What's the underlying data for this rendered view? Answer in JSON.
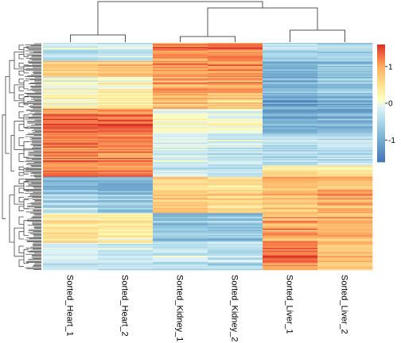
{
  "chart_data": {
    "type": "heatmap",
    "title": "",
    "columns": [
      "Sorted_Heart_1",
      "Sorted_Heart_2",
      "Sorted_Kidney_1",
      "Sorted_Kidney_2",
      "Sorted_Liver_1",
      "Sorted_Liver_2"
    ],
    "column_dendrogram": "((Sorted_Heart_1,Sorted_Heart_2),((Sorted_Kidney_1,Sorted_Kidney_2),(Sorted_Liver_1,Sorted_Liver_2)))",
    "row_dendrogram": "on left, many genes, not labeled",
    "colorbar": {
      "ticks": [
        1,
        0,
        -1
      ],
      "ticklabels": [
        "1",
        "0",
        "-1"
      ],
      "range": [
        -1.6,
        1.6
      ],
      "colors": {
        "low": "#4575b4",
        "mid": "#ffffbf",
        "high": "#d73027"
      },
      "position": "right"
    },
    "row_blocks": [
      {
        "approx_fraction": 0.08,
        "values": [
          -0.3,
          -0.2,
          1.2,
          1.2,
          -0.4,
          -0.5
        ]
      },
      {
        "approx_fraction": 0.07,
        "values": [
          0.6,
          0.7,
          1.1,
          1.1,
          -1.0,
          -0.8
        ]
      },
      {
        "approx_fraction": 0.07,
        "values": [
          0.0,
          0.2,
          1.0,
          1.0,
          -0.9,
          -0.7
        ]
      },
      {
        "approx_fraction": 0.07,
        "values": [
          0.2,
          0.3,
          0.8,
          0.7,
          -1.1,
          -1.0
        ]
      },
      {
        "approx_fraction": 0.11,
        "values": [
          1.3,
          1.3,
          0.1,
          0.0,
          -1.0,
          -0.9
        ]
      },
      {
        "approx_fraction": 0.14,
        "values": [
          1.2,
          1.2,
          -0.2,
          -0.3,
          -0.5,
          -0.4
        ]
      },
      {
        "approx_fraction": 0.05,
        "values": [
          1.2,
          1.2,
          -0.3,
          -0.3,
          0.5,
          0.4
        ]
      },
      {
        "approx_fraction": 0.08,
        "values": [
          -0.8,
          -0.9,
          0.6,
          0.6,
          0.9,
          1.0
        ]
      },
      {
        "approx_fraction": 0.08,
        "values": [
          -0.4,
          -0.6,
          0.8,
          0.6,
          0.8,
          1.0
        ]
      },
      {
        "approx_fraction": 0.13,
        "values": [
          0.4,
          0.3,
          -0.8,
          -0.7,
          1.0,
          0.9
        ]
      },
      {
        "approx_fraction": 0.12,
        "values": [
          -0.2,
          -0.3,
          -0.3,
          -0.4,
          1.2,
          0.7
        ]
      }
    ]
  }
}
